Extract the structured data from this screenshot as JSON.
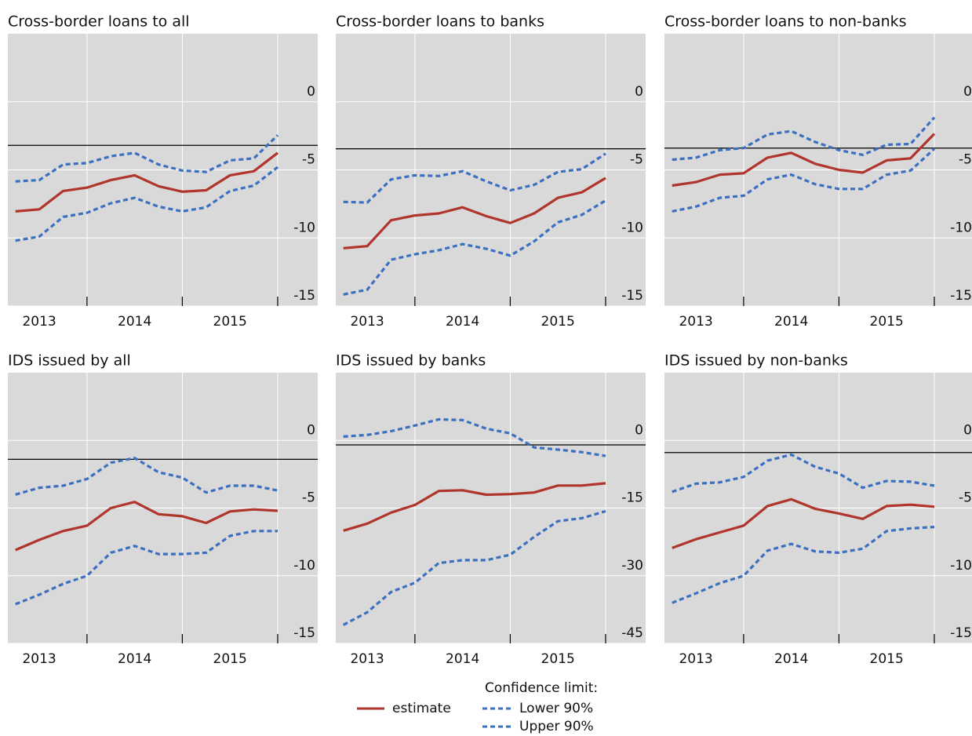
{
  "chart_data": [
    {
      "type": "line",
      "title": "Cross-border loans to all",
      "x": [
        2013.25,
        2013.5,
        2013.75,
        2014.0,
        2014.25,
        2014.5,
        2014.75,
        2015.0,
        2015.25,
        2015.5,
        2015.75,
        2016.0
      ],
      "xlim": [
        2013.17,
        2016.42
      ],
      "xticks": [
        {
          "value": 2013.5,
          "label": "2013"
        },
        {
          "value": 2014.5,
          "label": "2014"
        },
        {
          "value": 2015.5,
          "label": "2015"
        }
      ],
      "ylim": [
        -15,
        5
      ],
      "yticks": [
        -15,
        -10,
        -5,
        0
      ],
      "hline": -3.2,
      "grid": true,
      "series": [
        {
          "name": "estimate",
          "color": "#b0352c",
          "dash": false,
          "values": [
            -8.05,
            -7.9,
            -6.55,
            -6.3,
            -5.75,
            -5.4,
            -6.2,
            -6.6,
            -6.5,
            -5.4,
            -5.1,
            -3.75
          ]
        },
        {
          "name": "Lower 90%",
          "color": "#3b6fc0",
          "dash": true,
          "values": [
            -10.2,
            -9.9,
            -8.45,
            -8.15,
            -7.45,
            -7.05,
            -7.7,
            -8.05,
            -7.75,
            -6.55,
            -6.15,
            -4.8
          ]
        },
        {
          "name": "Upper 90%",
          "color": "#3b6fc0",
          "dash": true,
          "values": [
            -5.85,
            -5.75,
            -4.6,
            -4.5,
            -4.0,
            -3.75,
            -4.6,
            -5.05,
            -5.15,
            -4.3,
            -4.15,
            -2.45
          ]
        }
      ]
    },
    {
      "type": "line",
      "title": "Cross-border loans to banks",
      "x": [
        2013.25,
        2013.5,
        2013.75,
        2014.0,
        2014.25,
        2014.5,
        2014.75,
        2015.0,
        2015.25,
        2015.5,
        2015.75,
        2016.0
      ],
      "xlim": [
        2013.17,
        2016.42
      ],
      "xticks": [
        {
          "value": 2013.5,
          "label": "2013"
        },
        {
          "value": 2014.5,
          "label": "2014"
        },
        {
          "value": 2015.5,
          "label": "2015"
        }
      ],
      "ylim": [
        -15,
        5
      ],
      "yticks": [
        -15,
        -10,
        -5,
        0
      ],
      "hline": -3.45,
      "grid": true,
      "series": [
        {
          "name": "estimate",
          "color": "#b0352c",
          "dash": false,
          "values": [
            -10.75,
            -10.6,
            -8.7,
            -8.35,
            -8.2,
            -7.75,
            -8.4,
            -8.9,
            -8.2,
            -7.05,
            -6.65,
            -5.6
          ]
        },
        {
          "name": "Lower 90%",
          "color": "#3b6fc0",
          "dash": true,
          "values": [
            -14.15,
            -13.8,
            -11.6,
            -11.2,
            -10.9,
            -10.45,
            -10.8,
            -11.3,
            -10.25,
            -8.85,
            -8.3,
            -7.25
          ]
        },
        {
          "name": "Upper 90%",
          "color": "#3b6fc0",
          "dash": true,
          "values": [
            -7.35,
            -7.4,
            -5.7,
            -5.4,
            -5.45,
            -5.1,
            -5.85,
            -6.5,
            -6.1,
            -5.15,
            -4.95,
            -3.8
          ]
        }
      ]
    },
    {
      "type": "line",
      "title": "Cross-border loans to non-banks",
      "x": [
        2013.25,
        2013.5,
        2013.75,
        2014.0,
        2014.25,
        2014.5,
        2014.75,
        2015.0,
        2015.25,
        2015.5,
        2015.75,
        2016.0
      ],
      "xlim": [
        2013.17,
        2016.42
      ],
      "xticks": [
        {
          "value": 2013.5,
          "label": "2013"
        },
        {
          "value": 2014.5,
          "label": "2014"
        },
        {
          "value": 2015.5,
          "label": "2015"
        }
      ],
      "ylim": [
        -15,
        5
      ],
      "yticks": [
        -15,
        -10,
        -5,
        0
      ],
      "hline": -3.4,
      "grid": true,
      "series": [
        {
          "name": "estimate",
          "color": "#b0352c",
          "dash": false,
          "values": [
            -6.15,
            -5.9,
            -5.35,
            -5.25,
            -4.1,
            -3.75,
            -4.55,
            -5.0,
            -5.2,
            -4.3,
            -4.15,
            -2.35
          ]
        },
        {
          "name": "Lower 90%",
          "color": "#3b6fc0",
          "dash": true,
          "values": [
            -8.05,
            -7.7,
            -7.05,
            -6.9,
            -5.7,
            -5.35,
            -6.05,
            -6.4,
            -6.4,
            -5.35,
            -5.05,
            -3.45
          ]
        },
        {
          "name": "Upper 90%",
          "color": "#3b6fc0",
          "dash": true,
          "values": [
            -4.25,
            -4.1,
            -3.55,
            -3.4,
            -2.4,
            -2.15,
            -2.95,
            -3.55,
            -3.9,
            -3.15,
            -3.1,
            -1.15
          ]
        }
      ]
    },
    {
      "type": "line",
      "title": "IDS issued by all",
      "x": [
        2013.25,
        2013.5,
        2013.75,
        2014.0,
        2014.25,
        2014.5,
        2014.75,
        2015.0,
        2015.25,
        2015.5,
        2015.75,
        2016.0
      ],
      "xlim": [
        2013.17,
        2016.42
      ],
      "xticks": [
        {
          "value": 2013.5,
          "label": "2013"
        },
        {
          "value": 2014.5,
          "label": "2014"
        },
        {
          "value": 2015.5,
          "label": "2015"
        }
      ],
      "ylim": [
        -15,
        5
      ],
      "yticks": [
        -15,
        -10,
        -5,
        0
      ],
      "hline": -1.4,
      "grid": true,
      "series": [
        {
          "name": "estimate",
          "color": "#b0352c",
          "dash": false,
          "values": [
            -8.1,
            -7.35,
            -6.7,
            -6.3,
            -5.0,
            -4.55,
            -5.45,
            -5.6,
            -6.1,
            -5.25,
            -5.1,
            -5.2
          ]
        },
        {
          "name": "Lower 90%",
          "color": "#3b6fc0",
          "dash": true,
          "values": [
            -12.1,
            -11.4,
            -10.6,
            -10.0,
            -8.3,
            -7.8,
            -8.4,
            -8.4,
            -8.3,
            -7.05,
            -6.7,
            -6.7
          ]
        },
        {
          "name": "Upper 90%",
          "color": "#3b6fc0",
          "dash": true,
          "values": [
            -4.0,
            -3.5,
            -3.35,
            -2.85,
            -1.65,
            -1.3,
            -2.35,
            -2.75,
            -3.85,
            -3.35,
            -3.35,
            -3.7
          ]
        }
      ]
    },
    {
      "type": "line",
      "title": "IDS issued by banks",
      "x": [
        2013.25,
        2013.5,
        2013.75,
        2014.0,
        2014.25,
        2014.5,
        2014.75,
        2015.0,
        2015.25,
        2015.5,
        2015.75,
        2016.0
      ],
      "xlim": [
        2013.17,
        2016.42
      ],
      "xticks": [
        {
          "value": 2013.5,
          "label": "2013"
        },
        {
          "value": 2014.5,
          "label": "2014"
        },
        {
          "value": 2015.5,
          "label": "2015"
        }
      ],
      "ylim": [
        -45,
        15
      ],
      "yticks": [
        -45,
        -30,
        -15,
        0
      ],
      "hline": -1.0,
      "grid": true,
      "series": [
        {
          "name": "estimate",
          "color": "#b0352c",
          "dash": false,
          "values": [
            -20.0,
            -18.45,
            -16.0,
            -14.3,
            -11.2,
            -11.05,
            -12.05,
            -11.9,
            -11.55,
            -10.0,
            -10.0,
            -9.5
          ]
        },
        {
          "name": "Lower 90%",
          "color": "#3b6fc0",
          "dash": true,
          "values": [
            -40.9,
            -38.1,
            -33.6,
            -31.55,
            -27.2,
            -26.55,
            -26.55,
            -25.35,
            -21.4,
            -17.9,
            -17.25,
            -15.7
          ]
        },
        {
          "name": "Upper 90%",
          "color": "#3b6fc0",
          "dash": true,
          "values": [
            0.85,
            1.2,
            2.05,
            3.3,
            4.65,
            4.5,
            2.6,
            1.55,
            -1.55,
            -2.05,
            -2.6,
            -3.45
          ]
        }
      ]
    },
    {
      "type": "line",
      "title": "IDS issued by non-banks",
      "x": [
        2013.25,
        2013.5,
        2013.75,
        2014.0,
        2014.25,
        2014.5,
        2014.75,
        2015.0,
        2015.25,
        2015.5,
        2015.75,
        2016.0
      ],
      "xlim": [
        2013.17,
        2016.42
      ],
      "xticks": [
        {
          "value": 2013.5,
          "label": "2013"
        },
        {
          "value": 2014.5,
          "label": "2014"
        },
        {
          "value": 2015.5,
          "label": "2015"
        }
      ],
      "ylim": [
        -15,
        5
      ],
      "yticks": [
        -15,
        -10,
        -5,
        0
      ],
      "hline": -0.9,
      "grid": true,
      "series": [
        {
          "name": "estimate",
          "color": "#b0352c",
          "dash": false,
          "values": [
            -7.95,
            -7.3,
            -6.8,
            -6.3,
            -4.85,
            -4.35,
            -5.05,
            -5.4,
            -5.8,
            -4.85,
            -4.75,
            -4.9
          ]
        },
        {
          "name": "Lower 90%",
          "color": "#3b6fc0",
          "dash": true,
          "values": [
            -12.0,
            -11.3,
            -10.55,
            -10.0,
            -8.15,
            -7.65,
            -8.2,
            -8.3,
            -8.0,
            -6.7,
            -6.5,
            -6.4
          ]
        },
        {
          "name": "Upper 90%",
          "color": "#3b6fc0",
          "dash": true,
          "values": [
            -3.8,
            -3.2,
            -3.1,
            -2.7,
            -1.5,
            -1.05,
            -1.95,
            -2.45,
            -3.5,
            -3.0,
            -3.05,
            -3.35
          ]
        }
      ]
    }
  ],
  "legend_title": "Confidence limit:"
}
